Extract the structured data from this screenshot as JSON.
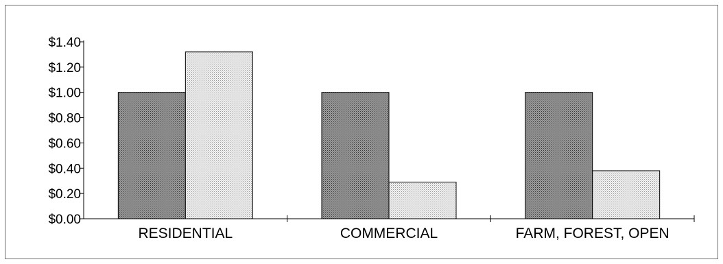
{
  "chart_data": {
    "type": "bar",
    "categories": [
      "RESIDENTIAL",
      "COMMERCIAL",
      "FARM, FOREST, OPEN"
    ],
    "series": [
      {
        "values": [
          1.0,
          1.0,
          1.0
        ],
        "color": "#8f8f8f",
        "pattern": "dense-dark-dots"
      },
      {
        "values": [
          1.32,
          0.29,
          0.38
        ],
        "color": "#e6e6e6",
        "pattern": "light-dots"
      }
    ],
    "y_ticks": [
      "$0.00",
      "$0.20",
      "$0.40",
      "$0.60",
      "$0.80",
      "$1.00",
      "$1.20",
      "$1.40"
    ],
    "ylim": [
      0,
      1.4
    ],
    "title": "",
    "xlabel": "",
    "ylabel": "",
    "grid": false,
    "legend": "none"
  }
}
